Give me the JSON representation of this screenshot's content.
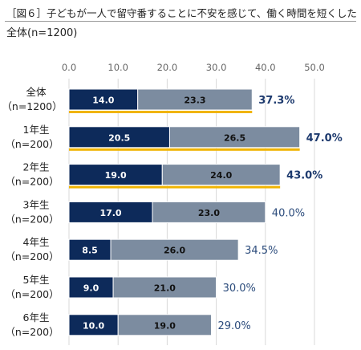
{
  "title": "［図６］子どもが一人で留守番することに不安を感じて、働く時間を短くした",
  "subtitle": "全体(n=1200)",
  "colors": {
    "series1": "#0d2a5a",
    "series2": "#7c8ca0",
    "highlight_underline": "#f0b400",
    "total_bold": "#1d3a6e",
    "total_normal": "#2c4c7c",
    "grid": "#d9d9d9",
    "tick": "#666666"
  },
  "chart_data": {
    "type": "bar",
    "orientation": "horizontal",
    "stacked": true,
    "xlim": [
      0,
      50
    ],
    "xticks": [
      "0.0",
      "10.0",
      "20.0",
      "30.0",
      "40.0",
      "50.0"
    ],
    "xtick_values": [
      0,
      10,
      20,
      30,
      40,
      50
    ],
    "grid": true,
    "categories": [
      {
        "label1": "全体",
        "label2": "（n=1200）"
      },
      {
        "label1": "1年生",
        "label2": "（n=200）"
      },
      {
        "label1": "2年生",
        "label2": "（n=200）"
      },
      {
        "label1": "3年生",
        "label2": "（n=200）"
      },
      {
        "label1": "4年生",
        "label2": "（n=200）"
      },
      {
        "label1": "5年生",
        "label2": "（n=200）"
      },
      {
        "label1": "6年生",
        "label2": "（n=200）"
      }
    ],
    "series": [
      {
        "values": [
          14.0,
          20.5,
          19.0,
          17.0,
          8.5,
          9.0,
          10.0
        ],
        "labels": [
          "14.0",
          "20.5",
          "19.0",
          "17.0",
          "8.5",
          "9.0",
          "10.0"
        ]
      },
      {
        "values": [
          23.3,
          26.5,
          24.0,
          23.0,
          26.0,
          21.0,
          19.0
        ],
        "labels": [
          "23.3",
          "26.5",
          "24.0",
          "23.0",
          "26.0",
          "21.0",
          "19.0"
        ]
      }
    ],
    "totals": [
      37.3,
      47.0,
      43.0,
      40.0,
      34.5,
      30.0,
      29.0
    ],
    "total_labels": [
      "37.3%",
      "47.0%",
      "43.0%",
      "40.0%",
      "34.5%",
      "30.0%",
      "29.0%"
    ],
    "highlighted": [
      true,
      true,
      true,
      false,
      false,
      false,
      false
    ]
  }
}
